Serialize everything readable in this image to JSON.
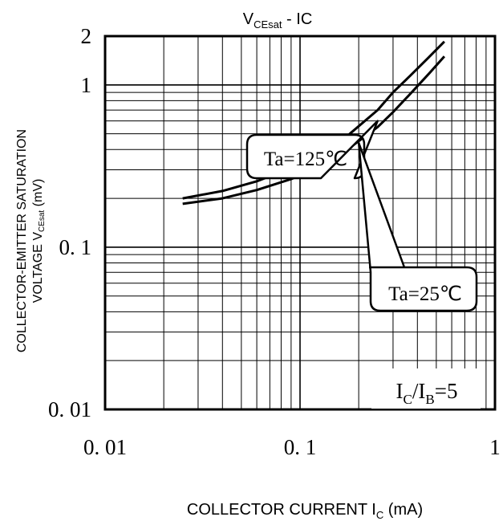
{
  "chart_data": {
    "type": "line",
    "title": {
      "main": "V",
      "sub": "CEsat",
      "tail": " - IC"
    },
    "xlabel": {
      "main": "COLLECTOR CURRENT I",
      "sub": "C",
      "tail": " (mA)"
    },
    "ylabel": {
      "line1": "COLLECTOR-EMITTER SATURATION",
      "line2_main": "VOLTAGE V",
      "line2_sub": "CEsat",
      "line2_tail": " (mV)"
    },
    "x_scale": "log",
    "y_scale": "log",
    "xlim": [
      0.01,
      1
    ],
    "ylim": [
      0.01,
      2
    ],
    "grid": true,
    "x_ticks": [
      {
        "value": 0.01,
        "label": "0. 01"
      },
      {
        "value": 0.1,
        "label": "0. 1"
      },
      {
        "value": 1,
        "label": "1"
      }
    ],
    "y_ticks": [
      {
        "value": 0.01,
        "label": "0. 01"
      },
      {
        "value": 0.1,
        "label": "0. 1"
      },
      {
        "value": 1,
        "label": "1"
      },
      {
        "value": 2,
        "label": "2"
      }
    ],
    "series": [
      {
        "name": "Ta=125℃",
        "x": [
          0.025,
          0.04,
          0.06,
          0.09,
          0.13,
          0.18,
          0.25,
          0.3,
          0.37,
          0.45,
          0.55
        ],
        "y": [
          0.2,
          0.222,
          0.255,
          0.308,
          0.385,
          0.5,
          0.7,
          0.9,
          1.15,
          1.45,
          1.85
        ]
      },
      {
        "name": "Ta=25℃",
        "x": [
          0.025,
          0.04,
          0.06,
          0.09,
          0.13,
          0.18,
          0.25,
          0.3,
          0.38,
          0.46,
          0.55
        ],
        "y": [
          0.185,
          0.2,
          0.225,
          0.263,
          0.318,
          0.41,
          0.55,
          0.68,
          0.92,
          1.18,
          1.5
        ]
      }
    ],
    "annotations": [
      {
        "label": "Ta=125℃",
        "target_x": 0.25,
        "target_y": 0.6
      },
      {
        "label": "Ta=25℃",
        "target_x": 0.2,
        "target_y": 0.44
      }
    ],
    "condition": {
      "main": "I",
      "sub1": "C",
      "mid": "/I",
      "sub2": "B",
      "tail": "=5"
    }
  }
}
